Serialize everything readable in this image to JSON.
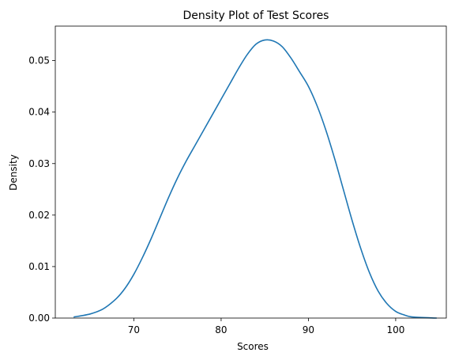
{
  "chart_data": {
    "type": "line",
    "title": "Density Plot of Test Scores",
    "xlabel": "Scores",
    "ylabel": "Density",
    "xlim": [
      61.0,
      105.8
    ],
    "ylim": [
      0.0,
      0.0567
    ],
    "xticks": [
      70,
      80,
      90,
      100
    ],
    "yticks": [
      0.0,
      0.01,
      0.02,
      0.03,
      0.04,
      0.05
    ],
    "ytick_labels": [
      "0.00",
      "0.01",
      "0.02",
      "0.03",
      "0.04",
      "0.05"
    ],
    "xtick_labels": [
      "70",
      "80",
      "90",
      "100"
    ],
    "grid": false,
    "color": "#1f77b4",
    "series": [
      {
        "x": [
          63.1,
          65.0,
          66.5,
          68.0,
          69.0,
          70.0,
          71.0,
          72.0,
          73.0,
          74.0,
          75.0,
          76.0,
          77.0,
          78.0,
          79.0,
          80.0,
          81.0,
          82.0,
          83.0,
          84.0,
          85.0,
          86.0,
          87.0,
          88.0,
          89.0,
          90.0,
          91.0,
          92.0,
          93.0,
          94.0,
          95.0,
          96.0,
          97.0,
          98.0,
          99.0,
          100.0,
          101.0,
          102.0,
          104.7
        ],
        "y": [
          0.0002,
          0.0008,
          0.0018,
          0.0038,
          0.0058,
          0.0085,
          0.0118,
          0.0155,
          0.0195,
          0.0235,
          0.0272,
          0.0305,
          0.0335,
          0.0365,
          0.0395,
          0.0425,
          0.0455,
          0.0485,
          0.0512,
          0.0532,
          0.054,
          0.0538,
          0.0527,
          0.0505,
          0.0478,
          0.045,
          0.0412,
          0.0365,
          0.031,
          0.025,
          0.019,
          0.0135,
          0.0088,
          0.0052,
          0.0028,
          0.0013,
          0.0006,
          0.0002,
          0.0
        ]
      }
    ]
  }
}
